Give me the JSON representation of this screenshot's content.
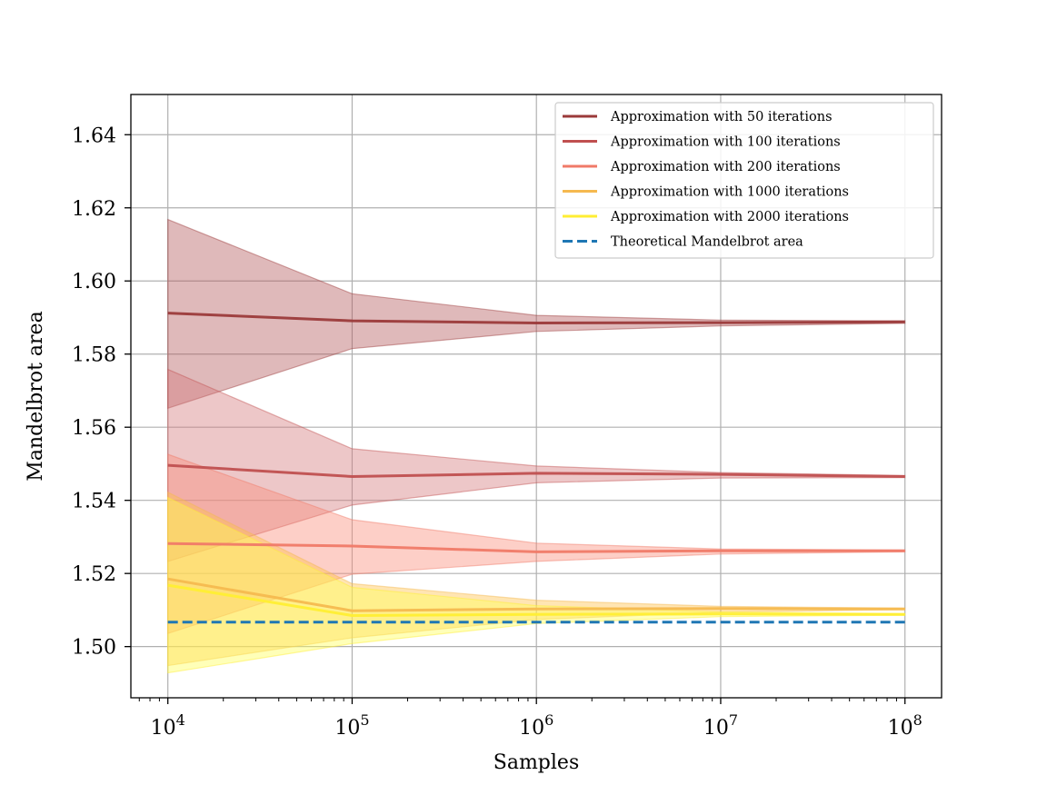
{
  "chart_data": {
    "type": "line",
    "title": "",
    "xlabel": "Samples",
    "ylabel": "Mandelbrot area",
    "xscale": "log",
    "xlim": [
      6300,
      158000000
    ],
    "ylim": [
      1.486,
      1.651
    ],
    "grid": true,
    "legend_position": "top-right",
    "x": [
      10000,
      100000,
      1000000,
      10000000,
      100000000
    ],
    "x_ticks": [
      {
        "value": 10000,
        "base": "10",
        "exp": "4"
      },
      {
        "value": 100000,
        "base": "10",
        "exp": "5"
      },
      {
        "value": 1000000,
        "base": "10",
        "exp": "6"
      },
      {
        "value": 10000000,
        "base": "10",
        "exp": "7"
      },
      {
        "value": 100000000,
        "base": "10",
        "exp": "8"
      }
    ],
    "y_ticks": [
      {
        "value": 1.5,
        "label": "1.50"
      },
      {
        "value": 1.52,
        "label": "1.52"
      },
      {
        "value": 1.54,
        "label": "1.54"
      },
      {
        "value": 1.56,
        "label": "1.56"
      },
      {
        "value": 1.58,
        "label": "1.58"
      },
      {
        "value": 1.6,
        "label": "1.60"
      },
      {
        "value": 1.62,
        "label": "1.62"
      },
      {
        "value": 1.64,
        "label": "1.64"
      }
    ],
    "series": [
      {
        "name": "Approximation with 50 iterations",
        "color": "#9b3a3a",
        "fill": "#b3585a",
        "values": [
          1.5912,
          1.5891,
          1.5885,
          1.5886,
          1.5888
        ],
        "lower": [
          1.5652,
          1.5815,
          1.5862,
          1.5877,
          1.5884
        ],
        "upper": [
          1.6168,
          1.5965,
          1.5906,
          1.5893,
          1.5891
        ]
      },
      {
        "name": "Approximation with 100 iterations",
        "color": "#c05050",
        "fill": "#d47a7c",
        "values": [
          1.5496,
          1.5465,
          1.5474,
          1.5471,
          1.5465
        ],
        "lower": [
          1.5233,
          1.5387,
          1.5448,
          1.5461,
          1.5462
        ],
        "upper": [
          1.5758,
          1.5541,
          1.5494,
          1.5476,
          1.5468
        ]
      },
      {
        "name": "Approximation with 200 iterations",
        "color": "#f07a68",
        "fill": "#fb8c7a",
        "values": [
          1.5282,
          1.5275,
          1.5259,
          1.5262,
          1.5262
        ],
        "lower": [
          1.5036,
          1.5198,
          1.5233,
          1.5253,
          1.5259
        ],
        "upper": [
          1.5526,
          1.5347,
          1.5283,
          1.5267,
          1.5264
        ]
      },
      {
        "name": "Approximation with 1000 iterations",
        "color": "#f5b94f",
        "fill": "#ffc14a",
        "values": [
          1.5185,
          1.5098,
          1.5103,
          1.5104,
          1.5103
        ],
        "lower": [
          1.4948,
          1.5024,
          1.5074,
          1.5094,
          1.5101
        ],
        "upper": [
          1.5422,
          1.5172,
          1.5127,
          1.511,
          1.5105
        ]
      },
      {
        "name": "Approximation with 2000 iterations",
        "color": "#ffee33",
        "fill": "#ffff55",
        "values": [
          1.5168,
          1.5085,
          1.5088,
          1.5089,
          1.5088
        ],
        "lower": [
          1.4928,
          1.5008,
          1.5063,
          1.5082,
          1.5086
        ],
        "upper": [
          1.5408,
          1.5162,
          1.5112,
          1.5095,
          1.509
        ]
      }
    ],
    "reference": {
      "name": "Theoretical Mandelbrot area",
      "value": 1.5067,
      "color": "#1f77b4",
      "style": "dashed"
    }
  }
}
